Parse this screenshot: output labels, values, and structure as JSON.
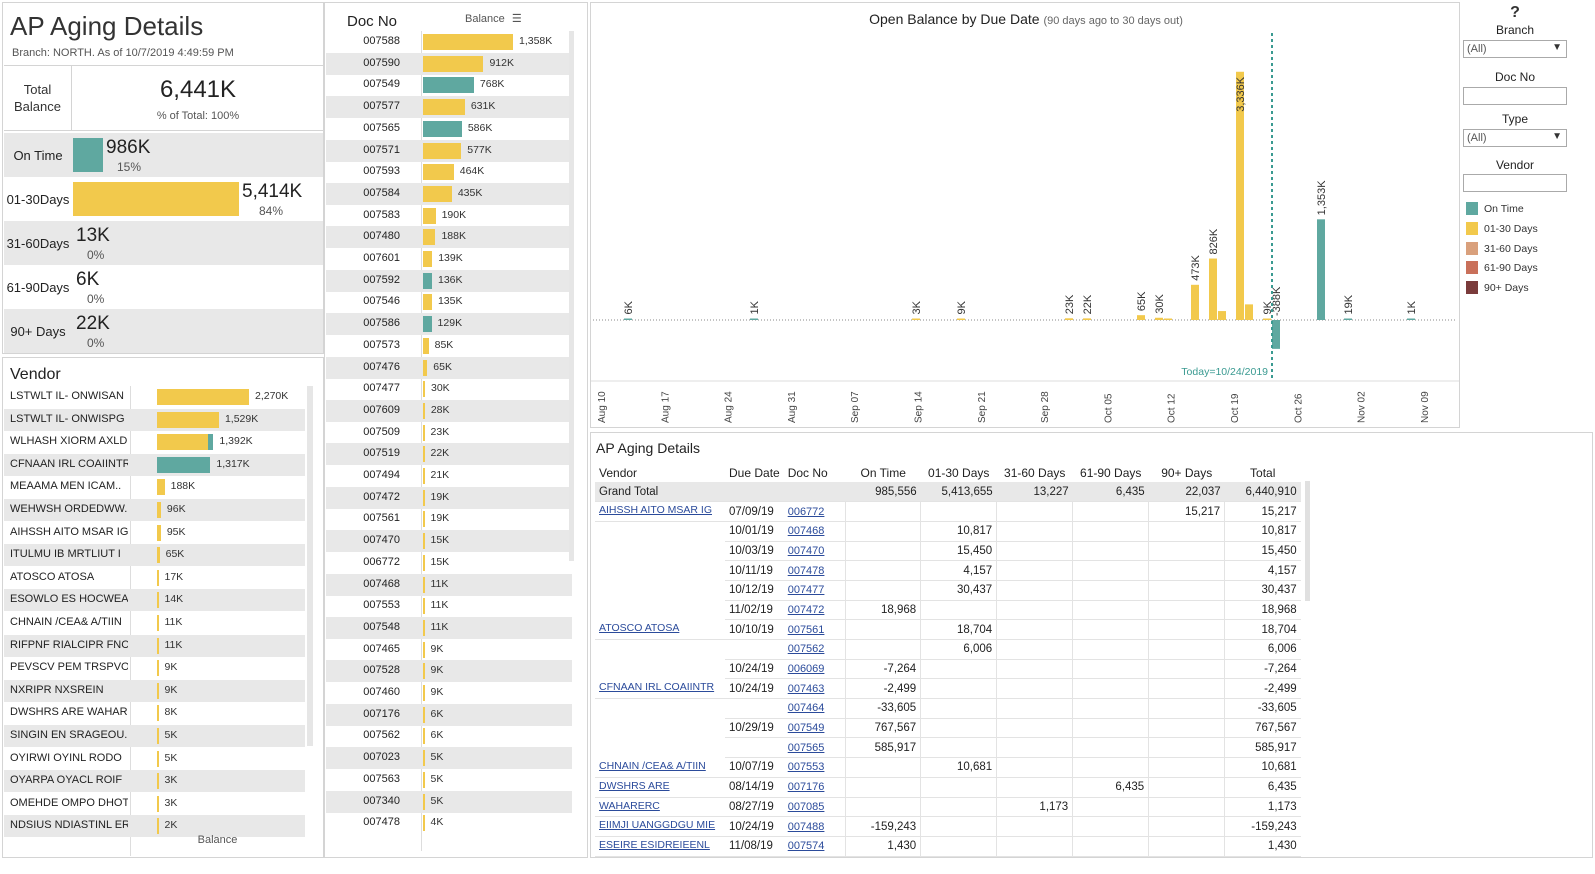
{
  "summary": {
    "title": "AP Aging Details",
    "subtitle": "Branch: NORTH. As of  10/7/2019 4:49:59 PM",
    "total_label_1": "Total",
    "total_label_2": "Balance",
    "total_value": "6,441K",
    "total_pct": "% of Total: 100%",
    "buckets": [
      {
        "label1": "On Time",
        "label2": "",
        "value": "986K",
        "pct": "15%",
        "fraction": 0.182,
        "color": "#5fa8a0"
      },
      {
        "label1": "01-30",
        "label2": "Days",
        "value": "5,414K",
        "pct": "84%",
        "fraction": 1.0,
        "color": "#f2c94c"
      },
      {
        "label1": "31-60",
        "label2": "Days",
        "value": "13K",
        "pct": "0%",
        "fraction": 0.0,
        "color": "#d9a07c"
      },
      {
        "label1": "61-90",
        "label2": "Days",
        "value": "6K",
        "pct": "0%",
        "fraction": 0.0,
        "color": "#c9705a"
      },
      {
        "label1": "90+ Days",
        "label2": "",
        "value": "22K",
        "pct": "0%",
        "fraction": 0.0,
        "color": "#7a3b3b"
      }
    ]
  },
  "vendor_panel": {
    "title": "Vendor",
    "footer": "Balance",
    "rows": [
      {
        "name": "LSTWLT  IL- ONWISAN",
        "value": "2,270K",
        "amount": 2270,
        "color": "#f2c94c",
        "teal": 0
      },
      {
        "name": "LSTWLT  IL- ONWISPG",
        "value": "1,529K",
        "amount": 1529,
        "color": "#f2c94c",
        "teal": 0
      },
      {
        "name": "WLHASH  XIORM AXLDE",
        "value": "1,392K",
        "amount": 1392,
        "color": "#f2c94c",
        "teal": 136
      },
      {
        "name": "CFNAAN  IRL COAIINTR",
        "value": "1,317K",
        "amount": 1317,
        "color": "#5fa8a0",
        "teal": 1317
      },
      {
        "name": "MEAAMA  MEN ICAM..",
        "value": "188K",
        "amount": 188,
        "color": "#f2c94c",
        "teal": 0
      },
      {
        "name": "WEHWSH  ORDEDWW..",
        "value": "96K",
        "amount": 96,
        "color": "#f2c94c",
        "teal": 0
      },
      {
        "name": "AIHSSH  AITO MSAR IG",
        "value": "95K",
        "amount": 95,
        "color": "#f2c94c",
        "teal": 0
      },
      {
        "name": "ITULMU  IB MRTLIUT I",
        "value": "65K",
        "amount": 65,
        "color": "#f2c94c",
        "teal": 0
      },
      {
        "name": "ATOSCO  ATOSA",
        "value": "17K",
        "amount": 17,
        "color": "#f2c94c",
        "teal": 0
      },
      {
        "name": "ESOWLO  ES HOCWEA..",
        "value": "14K",
        "amount": 14,
        "color": "#f2c94c",
        "teal": 0
      },
      {
        "name": "CHNAIN  /CEA& A/TIIN",
        "value": "11K",
        "amount": 11,
        "color": "#f2c94c",
        "teal": 0
      },
      {
        "name": "RIFPNF  RIALCIPR FNC",
        "value": "11K",
        "amount": 11,
        "color": "#f2c94c",
        "teal": 0
      },
      {
        "name": "PEVSCV  PEM TRSPVO",
        "value": "9K",
        "amount": 9,
        "color": "#f2c94c",
        "teal": 0
      },
      {
        "name": "NXRIPR  NXSREIN",
        "value": "9K",
        "amount": 9,
        "color": "#f2c94c",
        "teal": 0
      },
      {
        "name": "DWSHRS  ARE WAHAR..",
        "value": "8K",
        "amount": 8,
        "color": "#f2c94c",
        "teal": 0
      },
      {
        "name": "SINGIN  EN SRAGEOU..",
        "value": "5K",
        "amount": 5,
        "color": "#f2c94c",
        "teal": 0
      },
      {
        "name": "OYIRWI  OYINL RODO",
        "value": "5K",
        "amount": 5,
        "color": "#f2c94c",
        "teal": 0
      },
      {
        "name": "OYARPA  OYACL ROIF",
        "value": "3K",
        "amount": 3,
        "color": "#f2c94c",
        "teal": 0
      },
      {
        "name": "OMEHDE  OMPO DHOT",
        "value": "3K",
        "amount": 3,
        "color": "#f2c94c",
        "teal": 0
      },
      {
        "name": "NDSIUS  NDIASTINL ER",
        "value": "2K",
        "amount": 2,
        "color": "#f2c94c",
        "teal": 0
      }
    ]
  },
  "doc_panel": {
    "header_doc": "Doc No",
    "header_balance": "Balance",
    "rows": [
      {
        "doc": "007588",
        "value": "1,358K",
        "amount": 1358,
        "color": "#f2c94c"
      },
      {
        "doc": "007590",
        "value": "912K",
        "amount": 912,
        "color": "#f2c94c"
      },
      {
        "doc": "007549",
        "value": "768K",
        "amount": 768,
        "color": "#5fa8a0"
      },
      {
        "doc": "007577",
        "value": "631K",
        "amount": 631,
        "color": "#f2c94c"
      },
      {
        "doc": "007565",
        "value": "586K",
        "amount": 586,
        "color": "#5fa8a0"
      },
      {
        "doc": "007571",
        "value": "577K",
        "amount": 577,
        "color": "#f2c94c"
      },
      {
        "doc": "007593",
        "value": "464K",
        "amount": 464,
        "color": "#f2c94c"
      },
      {
        "doc": "007584",
        "value": "435K",
        "amount": 435,
        "color": "#f2c94c"
      },
      {
        "doc": "007583",
        "value": "190K",
        "amount": 190,
        "color": "#f2c94c"
      },
      {
        "doc": "007480",
        "value": "188K",
        "amount": 188,
        "color": "#f2c94c"
      },
      {
        "doc": "007601",
        "value": "139K",
        "amount": 139,
        "color": "#f2c94c"
      },
      {
        "doc": "007592",
        "value": "136K",
        "amount": 136,
        "color": "#5fa8a0"
      },
      {
        "doc": "007546",
        "value": "135K",
        "amount": 135,
        "color": "#f2c94c"
      },
      {
        "doc": "007586",
        "value": "129K",
        "amount": 129,
        "color": "#5fa8a0"
      },
      {
        "doc": "007573",
        "value": "85K",
        "amount": 85,
        "color": "#f2c94c"
      },
      {
        "doc": "007476",
        "value": "65K",
        "amount": 65,
        "color": "#f2c94c"
      },
      {
        "doc": "007477",
        "value": "30K",
        "amount": 30,
        "color": "#f2c94c"
      },
      {
        "doc": "007609",
        "value": "28K",
        "amount": 28,
        "color": "#f2c94c"
      },
      {
        "doc": "007509",
        "value": "23K",
        "amount": 23,
        "color": "#f2c94c"
      },
      {
        "doc": "007519",
        "value": "22K",
        "amount": 22,
        "color": "#f2c94c"
      },
      {
        "doc": "007494",
        "value": "21K",
        "amount": 21,
        "color": "#f2c94c"
      },
      {
        "doc": "007472",
        "value": "19K",
        "amount": 19,
        "color": "#f2c94c"
      },
      {
        "doc": "007561",
        "value": "19K",
        "amount": 19,
        "color": "#f2c94c"
      },
      {
        "doc": "007470",
        "value": "15K",
        "amount": 15,
        "color": "#f2c94c"
      },
      {
        "doc": "006772",
        "value": "15K",
        "amount": 15,
        "color": "#f2c94c"
      },
      {
        "doc": "007468",
        "value": "11K",
        "amount": 11,
        "color": "#f2c94c"
      },
      {
        "doc": "007553",
        "value": "11K",
        "amount": 11,
        "color": "#f2c94c"
      },
      {
        "doc": "007548",
        "value": "11K",
        "amount": 11,
        "color": "#f2c94c"
      },
      {
        "doc": "007465",
        "value": "9K",
        "amount": 9,
        "color": "#f2c94c"
      },
      {
        "doc": "007528",
        "value": "9K",
        "amount": 9,
        "color": "#f2c94c"
      },
      {
        "doc": "007460",
        "value": "9K",
        "amount": 9,
        "color": "#f2c94c"
      },
      {
        "doc": "007176",
        "value": "6K",
        "amount": 6,
        "color": "#f2c94c"
      },
      {
        "doc": "007562",
        "value": "6K",
        "amount": 6,
        "color": "#f2c94c"
      },
      {
        "doc": "007023",
        "value": "5K",
        "amount": 5,
        "color": "#f2c94c"
      },
      {
        "doc": "007563",
        "value": "5K",
        "amount": 5,
        "color": "#f2c94c"
      },
      {
        "doc": "007340",
        "value": "5K",
        "amount": 5,
        "color": "#f2c94c"
      },
      {
        "doc": "007478",
        "value": "4K",
        "amount": 4,
        "color": "#f2c94c"
      }
    ]
  },
  "chart_data": {
    "type": "bar",
    "title": "Open Balance by Due Date",
    "subtitle": "(90 days ago to 30 days out)",
    "today_label": "Today=10/24/2019",
    "x_ticks": [
      "Aug 10",
      "Aug 17",
      "Aug 24",
      "Aug 31",
      "Sep 07",
      "Sep 14",
      "Sep 21",
      "Sep 28",
      "Oct 05",
      "Oct 12",
      "Oct 19",
      "Oct 26",
      "Nov 02",
      "Nov 09"
    ],
    "x_start": "2019-08-10",
    "x_end": "2019-11-12",
    "today": "2019-10-24",
    "ylim": [
      -400,
      3400
    ],
    "bars": [
      {
        "date": "2019-08-13",
        "value": 6,
        "label": "6K",
        "series": "On Time"
      },
      {
        "date": "2019-08-27",
        "value": 1,
        "label": "1K",
        "series": "On Time"
      },
      {
        "date": "2019-09-14",
        "value": 3,
        "label": "3K",
        "series": "01-30 Days"
      },
      {
        "date": "2019-09-19",
        "value": 9,
        "label": "9K",
        "series": "01-30 Days"
      },
      {
        "date": "2019-10-01",
        "value": 23,
        "label": "23K",
        "series": "01-30 Days"
      },
      {
        "date": "2019-10-03",
        "value": 22,
        "label": "22K",
        "series": "01-30 Days"
      },
      {
        "date": "2019-10-09",
        "value": 65,
        "label": "65K",
        "series": "01-30 Days"
      },
      {
        "date": "2019-10-11",
        "value": 30,
        "label": "30K",
        "series": "01-30 Days"
      },
      {
        "date": "2019-10-12",
        "value": 12,
        "label": "",
        "series": "01-30 Days"
      },
      {
        "date": "2019-10-15",
        "value": 473,
        "label": "473K",
        "series": "01-30 Days"
      },
      {
        "date": "2019-10-17",
        "value": 826,
        "label": "826K",
        "series": "01-30 Days"
      },
      {
        "date": "2019-10-18",
        "value": 120,
        "label": "",
        "series": "01-30 Days"
      },
      {
        "date": "2019-10-20",
        "value": 3336,
        "label": "3,336K",
        "series": "01-30 Days"
      },
      {
        "date": "2019-10-21",
        "value": 210,
        "label": "",
        "series": "01-30 Days"
      },
      {
        "date": "2019-10-23",
        "value": 9,
        "label": "9K",
        "series": "01-30 Days"
      },
      {
        "date": "2019-10-24",
        "value": -388,
        "label": "-388K",
        "series": "On Time"
      },
      {
        "date": "2019-10-29",
        "value": 1353,
        "label": "1,353K",
        "series": "On Time"
      },
      {
        "date": "2019-11-01",
        "value": 19,
        "label": "19K",
        "series": "On Time"
      },
      {
        "date": "2019-11-08",
        "value": 1,
        "label": "1K",
        "series": "On Time"
      }
    ]
  },
  "filters": {
    "help": "?",
    "branch_label": "Branch",
    "branch_value": "(All)",
    "docno_label": "Doc No",
    "docno_value": "",
    "type_label": "Type",
    "type_value": "(All)",
    "vendor_label": "Vendor",
    "vendor_value": "",
    "legend": [
      {
        "name": "On Time",
        "color": "#5fa8a0"
      },
      {
        "name": "01-30 Days",
        "color": "#f2c94c"
      },
      {
        "name": "31-60 Days",
        "color": "#d9a07c"
      },
      {
        "name": "61-90 Days",
        "color": "#c9705a"
      },
      {
        "name": "90+ Days",
        "color": "#7a3b3b"
      }
    ]
  },
  "table": {
    "title": "AP Aging Details",
    "headers": [
      "Vendor",
      "Due Date",
      "Doc No",
      "On Time",
      "01-30 Days",
      "31-60 Days",
      "61-90 Days",
      "90+ Days",
      "Total"
    ],
    "grand_total": [
      "Grand Total",
      "",
      "",
      "985,556",
      "5,413,655",
      "13,227",
      "6,435",
      "22,037",
      "6,440,910"
    ],
    "rows": [
      [
        "AIHSSH  AITO MSAR IG",
        "07/09/19",
        "006772",
        "",
        "",
        "",
        "",
        "15,217",
        "15,217"
      ],
      [
        "",
        "10/01/19",
        "007468",
        "",
        "10,817",
        "",
        "",
        "",
        "10,817"
      ],
      [
        "",
        "10/03/19",
        "007470",
        "",
        "15,450",
        "",
        "",
        "",
        "15,450"
      ],
      [
        "",
        "10/11/19",
        "007478",
        "",
        "4,157",
        "",
        "",
        "",
        "4,157"
      ],
      [
        "",
        "10/12/19",
        "007477",
        "",
        "30,437",
        "",
        "",
        "",
        "30,437"
      ],
      [
        "",
        "11/02/19",
        "007472",
        "18,968",
        "",
        "",
        "",
        "",
        "18,968"
      ],
      [
        "ATOSCO  ATOSA",
        "10/10/19",
        "007561",
        "",
        "18,704",
        "",
        "",
        "",
        "18,704"
      ],
      [
        "",
        "",
        "007562",
        "",
        "6,006",
        "",
        "",
        "",
        "6,006"
      ],
      [
        "",
        "10/24/19",
        "006069",
        "-7,264",
        "",
        "",
        "",
        "",
        "-7,264"
      ],
      [
        "CFNAAN  IRL COAIINTR",
        "10/24/19",
        "007463",
        "-2,499",
        "",
        "",
        "",
        "",
        "-2,499"
      ],
      [
        "",
        "",
        "007464",
        "-33,605",
        "",
        "",
        "",
        "",
        "-33,605"
      ],
      [
        "",
        "10/29/19",
        "007549",
        "767,567",
        "",
        "",
        "",
        "",
        "767,567"
      ],
      [
        "",
        "",
        "007565",
        "585,917",
        "",
        "",
        "",
        "",
        "585,917"
      ],
      [
        "CHNAIN  /CEA& A/TIIN",
        "10/07/19",
        "007553",
        "",
        "10,681",
        "",
        "",
        "",
        "10,681"
      ],
      [
        "DWSHRS  ARE",
        "08/14/19",
        "007176",
        "",
        "",
        "",
        "6,435",
        "",
        "6,435"
      ],
      [
        "WAHARERC",
        "08/27/19",
        "007085",
        "",
        "",
        "1,173",
        "",
        "",
        "1,173"
      ],
      [
        "EIIMJI  UANGGDGU MIE",
        "10/24/19",
        "007488",
        "-159,243",
        "",
        "",
        "",
        "",
        "-159,243"
      ],
      [
        "ESEIRE  ESIDREIEENL",
        "11/08/19",
        "007574",
        "1,430",
        "",
        "",
        "",
        "",
        "1,430"
      ]
    ]
  }
}
